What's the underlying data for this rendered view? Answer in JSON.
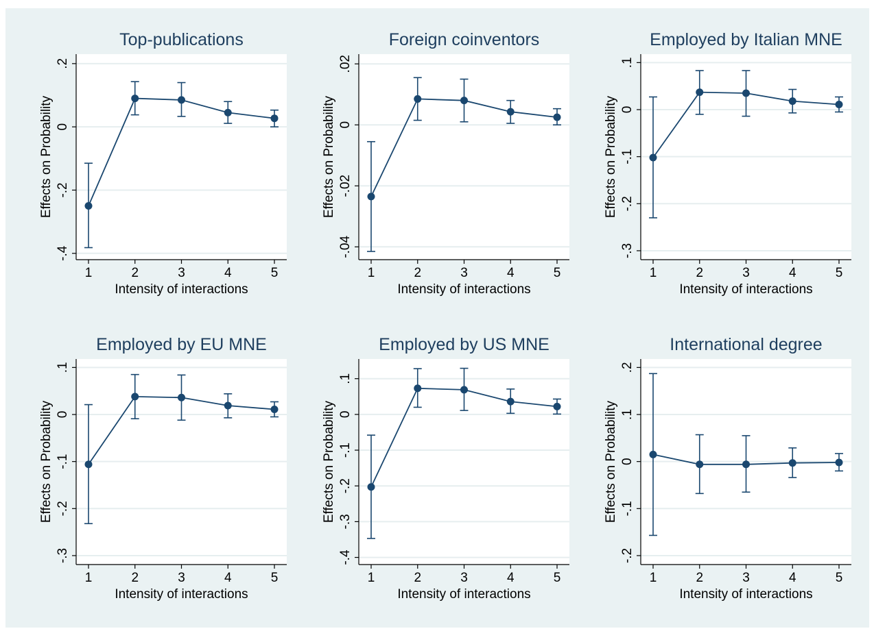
{
  "colors": {
    "figure_background": "#eaf2f3",
    "plot_background": "#ffffff",
    "gridline": "#e6eeef",
    "series": "#1a476f",
    "text": "#000000",
    "title": "#1e3e5e"
  },
  "chart_data": [
    {
      "type": "line",
      "title": "Top-publications",
      "xlabel": "Intensity of interactions",
      "ylabel": "Effects on Probability",
      "x": [
        1,
        2,
        3,
        4,
        5
      ],
      "x_ticks": [
        "1",
        "2",
        "3",
        "4",
        "5"
      ],
      "y": [
        -0.25,
        0.09,
        0.085,
        0.045,
        0.027
      ],
      "ci_low": [
        -0.382,
        0.038,
        0.033,
        0.011,
        0.0
      ],
      "ci_high": [
        -0.115,
        0.143,
        0.14,
        0.08,
        0.053
      ],
      "ylim": [
        -0.42,
        0.23
      ],
      "y_ticks": [
        -0.4,
        -0.2,
        0,
        0.2
      ],
      "y_tick_labels": [
        "-.4",
        "-.2",
        "0",
        ".2"
      ],
      "grid": true
    },
    {
      "type": "line",
      "title": "Foreign coinventors",
      "xlabel": "Intensity of interactions",
      "ylabel": "Effects on Probability",
      "x": [
        1,
        2,
        3,
        4,
        5
      ],
      "x_ticks": [
        "1",
        "2",
        "3",
        "4",
        "5"
      ],
      "y": [
        -0.0235,
        0.0085,
        0.008,
        0.0043,
        0.0025
      ],
      "ci_low": [
        -0.0415,
        0.0015,
        0.001,
        0.0005,
        0.0
      ],
      "ci_high": [
        -0.0055,
        0.0155,
        0.015,
        0.008,
        0.0053
      ],
      "ylim": [
        -0.0442,
        0.0232
      ],
      "y_ticks": [
        -0.04,
        -0.02,
        0,
        0.02
      ],
      "y_tick_labels": [
        "-.04",
        "-.02",
        "0",
        ".02"
      ],
      "grid": true
    },
    {
      "type": "line",
      "title": "Employed by Italian MNE",
      "xlabel": "Intensity of interactions",
      "ylabel": "Effects on Probability",
      "x": [
        1,
        2,
        3,
        4,
        5
      ],
      "x_ticks": [
        "1",
        "2",
        "3",
        "4",
        "5"
      ],
      "y": [
        -0.102,
        0.037,
        0.035,
        0.018,
        0.011
      ],
      "ci_low": [
        -0.23,
        -0.01,
        -0.014,
        -0.007,
        -0.005
      ],
      "ci_high": [
        0.027,
        0.083,
        0.083,
        0.043,
        0.027
      ],
      "ylim": [
        -0.319,
        0.118
      ],
      "y_ticks": [
        -0.3,
        -0.2,
        -0.1,
        0,
        0.1
      ],
      "y_tick_labels": [
        "-.3",
        "-.2",
        "-.1",
        "0",
        ".1"
      ],
      "grid": true
    },
    {
      "type": "line",
      "title": "Employed by EU MNE",
      "xlabel": "Intensity of interactions",
      "ylabel": "Effects on Probability",
      "x": [
        1,
        2,
        3,
        4,
        5
      ],
      "x_ticks": [
        "1",
        "2",
        "3",
        "4",
        "5"
      ],
      "y": [
        -0.106,
        0.038,
        0.036,
        0.019,
        0.011
      ],
      "ci_low": [
        -0.232,
        -0.009,
        -0.012,
        -0.007,
        -0.005
      ],
      "ci_high": [
        0.021,
        0.085,
        0.084,
        0.044,
        0.027
      ],
      "ylim": [
        -0.319,
        0.118
      ],
      "y_ticks": [
        -0.3,
        -0.2,
        -0.1,
        0,
        0.1
      ],
      "y_tick_labels": [
        "-.3",
        "-.2",
        "-.1",
        "0",
        ".1"
      ],
      "grid": true
    },
    {
      "type": "line",
      "title": "Employed by US MNE",
      "xlabel": "Intensity of interactions",
      "ylabel": "Effects on Probability",
      "x": [
        1,
        2,
        3,
        4,
        5
      ],
      "x_ticks": [
        "1",
        "2",
        "3",
        "4",
        "5"
      ],
      "y": [
        -0.203,
        0.073,
        0.069,
        0.036,
        0.022
      ],
      "ci_low": [
        -0.347,
        0.02,
        0.011,
        0.003,
        0.001
      ],
      "ci_high": [
        -0.058,
        0.128,
        0.129,
        0.071,
        0.043
      ],
      "ylim": [
        -0.42,
        0.155
      ],
      "y_ticks": [
        -0.4,
        -0.3,
        -0.2,
        -0.1,
        0,
        0.1
      ],
      "y_tick_labels": [
        "-.4",
        "-.3",
        "-.2",
        "-.1",
        "0",
        ".1"
      ],
      "grid": true
    },
    {
      "type": "line",
      "title": "International degree",
      "xlabel": "Intensity of interactions",
      "ylabel": "Effects on Probability",
      "x": [
        1,
        2,
        3,
        4,
        5
      ],
      "x_ticks": [
        "1",
        "2",
        "3",
        "4",
        "5"
      ],
      "y": [
        0.015,
        -0.006,
        -0.006,
        -0.003,
        -0.002
      ],
      "ci_low": [
        -0.157,
        -0.068,
        -0.065,
        -0.034,
        -0.02
      ],
      "ci_high": [
        0.187,
        0.057,
        0.055,
        0.029,
        0.017
      ],
      "ylim": [
        -0.219,
        0.218
      ],
      "y_ticks": [
        -0.2,
        -0.1,
        0,
        0.1,
        0.2
      ],
      "y_tick_labels": [
        "-.2",
        "-.1",
        "0",
        ".1",
        ".2"
      ],
      "grid": true
    }
  ]
}
